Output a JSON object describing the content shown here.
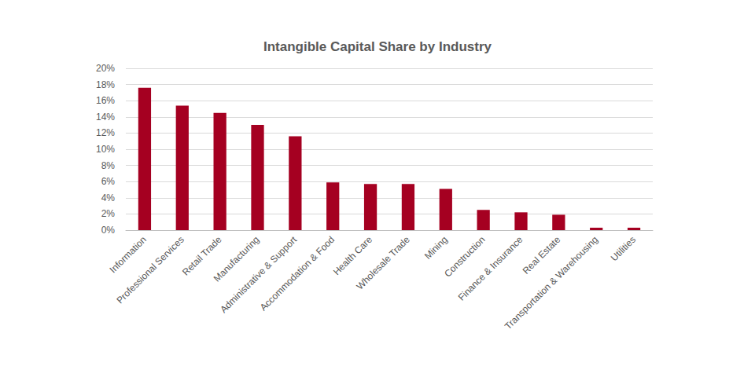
{
  "chart_data": {
    "type": "bar",
    "title": "Intangible Capital Share by Industry",
    "categories": [
      "Information",
      "Professional Services",
      "Retail Trade",
      "Manufacturing",
      "Administrative & Support",
      "Accommodation & Food",
      "Health Care",
      "Wholesale Trade",
      "Mining",
      "Construction",
      "Finance & Insurance",
      "Real Estate",
      "Transportation & Warehousing",
      "Utilities"
    ],
    "values": [
      17.6,
      15.4,
      14.5,
      13.0,
      11.6,
      5.9,
      5.7,
      5.7,
      5.1,
      2.5,
      2.2,
      1.9,
      0.3,
      0.3
    ],
    "color": "#a50021",
    "ylim": [
      0,
      20
    ],
    "yticks": [
      {
        "value": 0,
        "label": "0%"
      },
      {
        "value": 2,
        "label": "2%"
      },
      {
        "value": 4,
        "label": "4%"
      },
      {
        "value": 6,
        "label": "6%"
      },
      {
        "value": 8,
        "label": "8%"
      },
      {
        "value": 10,
        "label": "10%"
      },
      {
        "value": 12,
        "label": "12%"
      },
      {
        "value": 14,
        "label": "14%"
      },
      {
        "value": 16,
        "label": "16%"
      },
      {
        "value": 18,
        "label": "18%"
      },
      {
        "value": 20,
        "label": "20%"
      }
    ],
    "grid": true
  }
}
